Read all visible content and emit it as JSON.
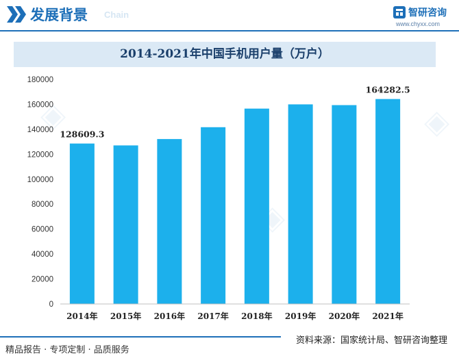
{
  "header": {
    "section_title": "发展背景",
    "section_subtitle": "Chain",
    "brand_name": "智研咨询",
    "brand_url": "www.chyxx.com",
    "accent_color": "#1d6fb8"
  },
  "footer": {
    "left_text": "精品报告 · 专项定制 · 品质服务",
    "source_text": "资料来源：国家统计局、智研咨询整理"
  },
  "chart_data": {
    "type": "bar",
    "title": "2014-2021年中国手机用户量（万户）",
    "categories": [
      "2014年",
      "2015年",
      "2016年",
      "2017年",
      "2018年",
      "2019年",
      "2020年",
      "2021年"
    ],
    "values": [
      128609.3,
      127100,
      132200,
      141700,
      156600,
      160000,
      159400,
      164282.5
    ],
    "data_labels": {
      "0": "128609.3",
      "7": "164282.5"
    },
    "ylim": [
      0,
      180000
    ],
    "yticks": [
      "0",
      "20000",
      "40000",
      "60000",
      "80000",
      "100000",
      "120000",
      "140000",
      "160000",
      "180000"
    ],
    "bar_color": "#1cb0ec",
    "grid": false,
    "legend": "none"
  }
}
